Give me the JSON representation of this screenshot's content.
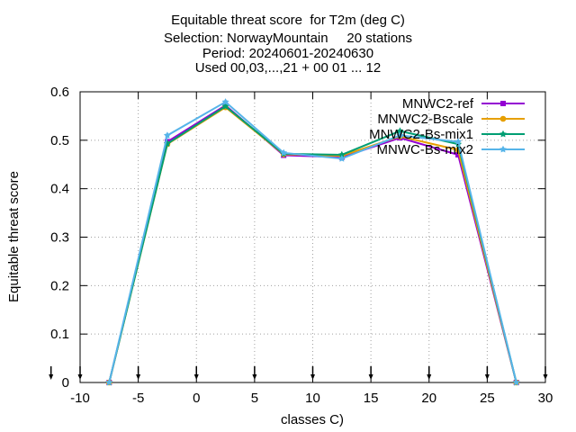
{
  "chart_data": {
    "type": "line",
    "title_lines": [
      "Equitable threat score  for T2m (deg C)",
      "Selection: NorwayMountain     20 stations",
      "Period: 20240601-20240630",
      "Used 00,03,...,21 + 00 01 ... 12"
    ],
    "xlabel": "classes C)",
    "ylabel": "Equitable threat score",
    "xlim": [
      -10,
      30
    ],
    "ylim": [
      0,
      0.6
    ],
    "xticks": [
      -10,
      -5,
      0,
      5,
      10,
      15,
      20,
      25,
      30
    ],
    "yticks": [
      0,
      0.1,
      0.2,
      0.3,
      0.4,
      0.5,
      0.6
    ],
    "xtick_labels": [
      "-10",
      "-5",
      "0",
      "5",
      "10",
      "15",
      "20",
      "25",
      "30"
    ],
    "ytick_labels": [
      "0",
      "0.1",
      "0.2",
      "0.3",
      "0.4",
      "0.5",
      "0.6"
    ],
    "grid": true,
    "legend_position": "top-right",
    "x": [
      -7.5,
      -2.5,
      2.5,
      7.5,
      12.5,
      17.5,
      22.5,
      27.5
    ],
    "series": [
      {
        "name": "MNWC2-ref",
        "color": "#9400d3",
        "marker": "square",
        "values": [
          0,
          0.497,
          0.572,
          0.469,
          0.465,
          0.505,
          0.47,
          0
        ]
      },
      {
        "name": "MNWC2-Bscale",
        "color": "#e69f00",
        "marker": "circle",
        "values": [
          0,
          0.492,
          0.568,
          0.471,
          0.468,
          0.508,
          0.48,
          0
        ]
      },
      {
        "name": "MNWC2-Bs-mix1",
        "color": "#009e73",
        "marker": "star",
        "values": [
          0,
          0.493,
          0.57,
          0.472,
          0.47,
          0.519,
          0.492,
          0
        ]
      },
      {
        "name": "MNWC-Bs-mix2",
        "color": "#56b4e9",
        "marker": "star",
        "values": [
          0,
          0.51,
          0.579,
          0.474,
          0.462,
          0.51,
          0.497,
          0
        ]
      }
    ]
  }
}
